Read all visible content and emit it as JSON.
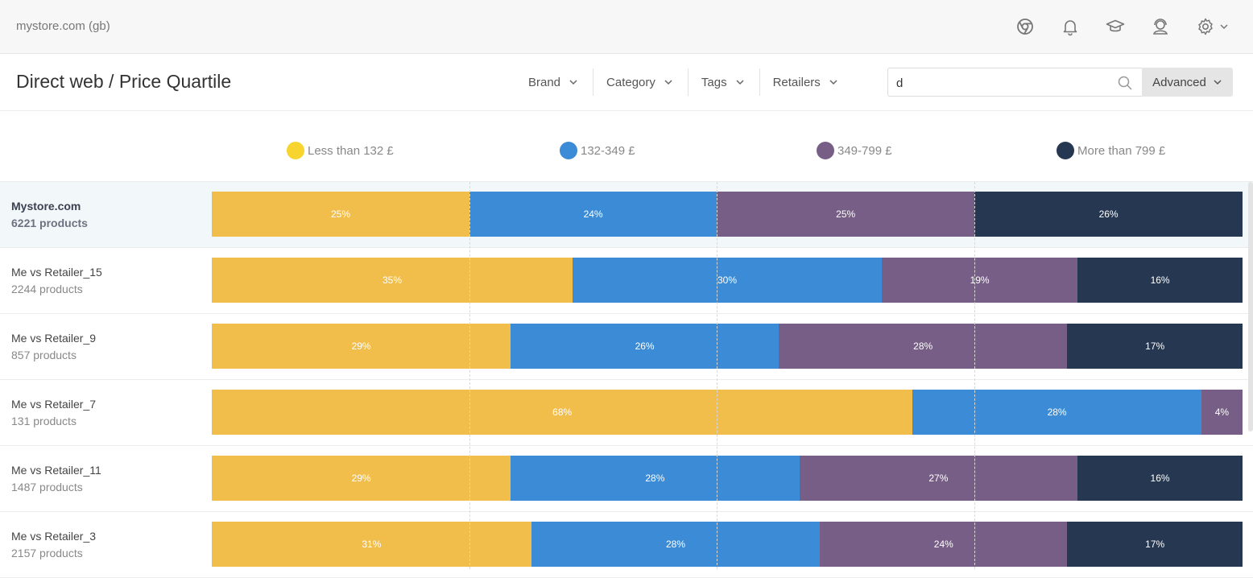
{
  "topbar": {
    "store_name": "mystore.com (gb)",
    "icons": [
      "chrome-icon",
      "bell-icon",
      "graduation-cap-icon",
      "support-icon",
      "gear-icon"
    ]
  },
  "header": {
    "title": "Direct web / Price Quartile",
    "filters": [
      {
        "label": "Brand"
      },
      {
        "label": "Category"
      },
      {
        "label": "Tags"
      },
      {
        "label": "Retailers"
      }
    ],
    "search": {
      "value": "d",
      "placeholder": ""
    },
    "advanced_label": "Advanced"
  },
  "colors": {
    "q1": "#f2be4b",
    "q2": "#3b8bd6",
    "q3": "#775e86",
    "q4": "#263752",
    "legend_q1": "#f7d52e"
  },
  "chart_data": {
    "type": "bar",
    "stacked": true,
    "orientation": "horizontal",
    "legend": [
      "Less than 132 £",
      "132-349 £",
      "349-799 £",
      "More than 799 £"
    ],
    "categories": [
      "Mystore.com",
      "Me vs Retailer_15",
      "Me vs Retailer_9",
      "Me vs Retailer_7",
      "Me vs Retailer_11",
      "Me vs Retailer_3"
    ],
    "rows": [
      {
        "name": "Mystore.com",
        "count": "6221 products",
        "highlight": true,
        "values": [
          25,
          24,
          25,
          26
        ],
        "labels": [
          "25%",
          "24%",
          "25%",
          "26%"
        ]
      },
      {
        "name": "Me vs Retailer_15",
        "count": "2244 products",
        "highlight": false,
        "values": [
          35,
          30,
          19,
          16
        ],
        "labels": [
          "35%",
          "30%",
          "19%",
          "16%"
        ]
      },
      {
        "name": "Me vs Retailer_9",
        "count": "857 products",
        "highlight": false,
        "values": [
          29,
          26,
          28,
          17
        ],
        "labels": [
          "29%",
          "26%",
          "28%",
          "17%"
        ]
      },
      {
        "name": "Me vs Retailer_7",
        "count": "131 products",
        "highlight": false,
        "values": [
          68,
          28,
          4,
          0
        ],
        "labels": [
          "68%",
          "28%",
          "4%",
          ""
        ]
      },
      {
        "name": "Me vs Retailer_11",
        "count": "1487 products",
        "highlight": false,
        "values": [
          29,
          28,
          27,
          16
        ],
        "labels": [
          "29%",
          "28%",
          "27%",
          "16%"
        ]
      },
      {
        "name": "Me vs Retailer_3",
        "count": "2157 products",
        "highlight": false,
        "values": [
          31,
          28,
          24,
          17
        ],
        "labels": [
          "31%",
          "28%",
          "24%",
          "17%"
        ]
      }
    ],
    "unit": "%"
  }
}
